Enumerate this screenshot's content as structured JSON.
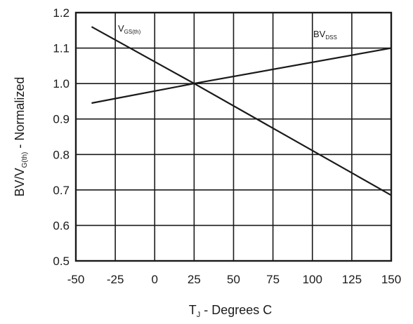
{
  "chart_data": {
    "type": "line",
    "xlabel": {
      "main": "T",
      "sub": "J",
      "rest": " - Degrees C"
    },
    "ylabel": {
      "main": "BV/V",
      "sub": "G(th)",
      "rest": " - Normalized"
    },
    "x_ticks": [
      "-50",
      "-25",
      "0",
      "25",
      "50",
      "75",
      "100",
      "125",
      "150"
    ],
    "y_ticks": [
      "0.5",
      "0.6",
      "0.7",
      "0.8",
      "0.9",
      "1.0",
      "1.1",
      "1.2"
    ],
    "xlim": [
      -50,
      150
    ],
    "ylim": [
      0.5,
      1.2
    ],
    "grid": true,
    "series": [
      {
        "name": "V_GS(th)",
        "label": {
          "main": "V",
          "sub": "GS(th)"
        },
        "x": [
          -40,
          25,
          150
        ],
        "y": [
          1.16,
          1.0,
          0.685
        ]
      },
      {
        "name": "BV_DSS",
        "label": {
          "main": "BV",
          "sub": "DSS"
        },
        "x": [
          -40,
          25,
          150
        ],
        "y": [
          0.945,
          1.0,
          1.1
        ]
      }
    ]
  }
}
